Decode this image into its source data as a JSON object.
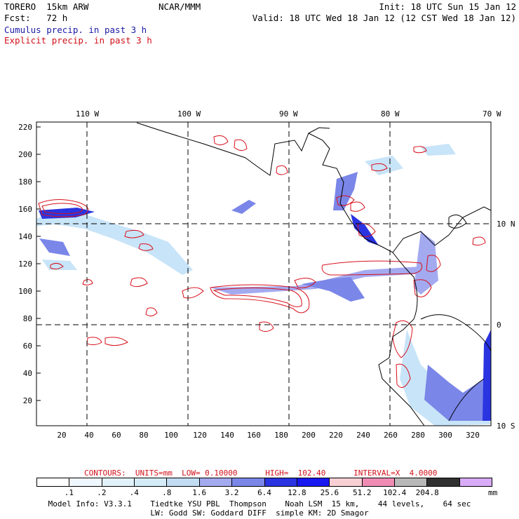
{
  "header": {
    "line1_left": "TORERO  15km ARW",
    "line1_center": "NCAR/MMM",
    "line1_right": "Init: 18 UTC Sun 15 Jan 12",
    "line2_left": "Fcst:   72 h",
    "line2_right": "Valid: 18 UTC Wed 18 Jan 12 (12 CST Wed 18 Jan 12)",
    "field1": "Cumulus precip. in past 3 h",
    "field2": "Explicit precip. in past 3 h"
  },
  "map": {
    "top_lon_labels": [
      "110 W",
      "100 W",
      "90 W",
      "80 W",
      "70 W"
    ],
    "right_lat_labels": [
      "10 N",
      "0",
      "10 S"
    ],
    "left_y_labels": [
      "220",
      "200",
      "180",
      "160",
      "140",
      "120",
      "100",
      "80",
      "60",
      "40",
      "20"
    ],
    "bottom_x_labels": [
      "20",
      "40",
      "60",
      "80",
      "100",
      "120",
      "140",
      "160",
      "180",
      "200",
      "220",
      "240",
      "260",
      "280",
      "300",
      "320"
    ],
    "colors": {
      "coastline": "#000000",
      "grid": "#000000",
      "explicit_contour": "#d8101c",
      "cumulus_light": "#c8e4f8",
      "cumulus_mid": "#7a86e8",
      "cumulus_dark": "#1e28d8"
    }
  },
  "legend": {
    "contours_text": "CONTOURS:  UNITS=mm  LOW= 0.10000      HIGH=  102.40      INTERVAL=X  4.0000",
    "unit": "mm",
    "bin_labels": [
      ".1",
      ".2",
      ".4",
      ".8",
      "1.6",
      "3.2",
      "6.4",
      "12.8",
      "25.6",
      "51.2",
      "102.4",
      "204.8"
    ],
    "bin_colors": [
      "#ffffff",
      "#f0f8ff",
      "#e2f2fb",
      "#d4ecf8",
      "#c2dcf4",
      "#a3aaf0",
      "#7a86e8",
      "#2a34e0",
      "#1818f0",
      "#f8d0d4",
      "#f08cb4",
      "#b8b8b8",
      "#303030",
      "#d8aaf8"
    ]
  },
  "footer": {
    "line1": "Model Info: V3.3.1    Tiedtke YSU PBL  Thompson    Noah LSM  15 km,    44 levels,    64 sec",
    "line2": "LW: Godd SW: Goddard DIFF  simple KM: 2D Smagor"
  }
}
